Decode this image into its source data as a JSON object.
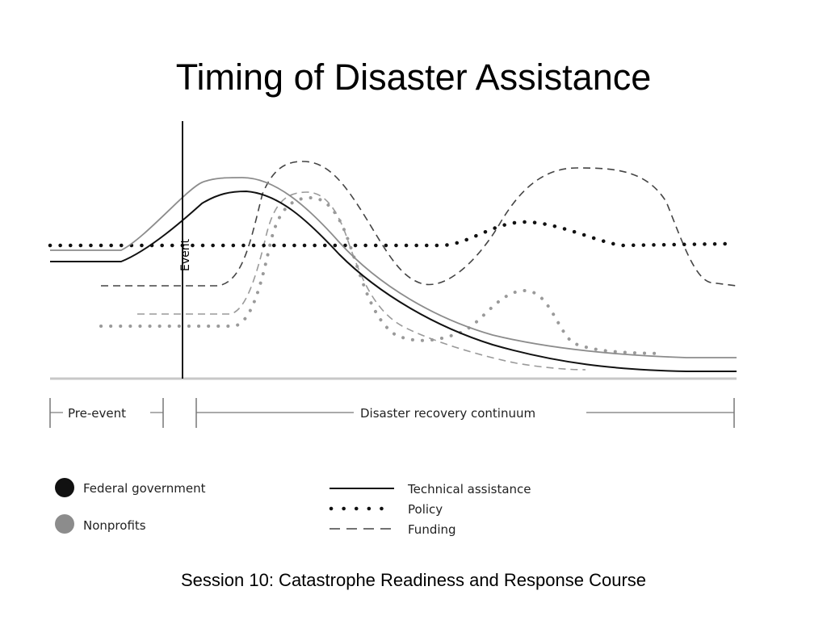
{
  "slide": {
    "title": "Timing of Disaster Assistance",
    "footer": "Session 10: Catastrophe Readiness and Response Course"
  },
  "diagram": {
    "event_label": "Event",
    "phases": {
      "pre_event": "Pre-event",
      "recovery": "Disaster recovery continuum"
    },
    "legend": {
      "actors": [
        {
          "label": "Federal government",
          "color": "#111111"
        },
        {
          "label": "Nonprofits",
          "color": "#8c8c8c"
        }
      ],
      "line_types": [
        {
          "label": "Technical assistance",
          "style": "solid"
        },
        {
          "label": "Policy",
          "style": "dotted"
        },
        {
          "label": "Funding",
          "style": "dashed"
        }
      ]
    },
    "colors": {
      "federal": "#111111",
      "nonprofit": "#8c8c8c",
      "baseline": "#c8c8c8"
    }
  }
}
